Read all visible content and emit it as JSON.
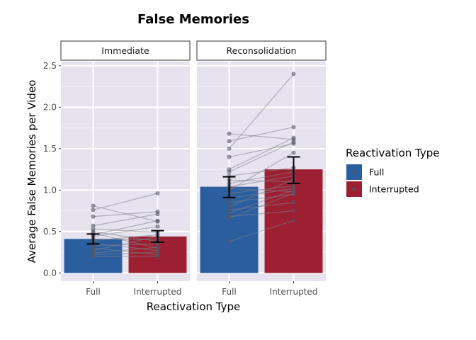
{
  "chart_data": {
    "type": "bar",
    "title": "False Memories",
    "xlabel": "Reactivation Type",
    "ylabel": "Average False Memories per Video",
    "ylim": [
      -0.1,
      2.55
    ],
    "yticks": [
      0.0,
      0.5,
      1.0,
      1.5,
      2.0,
      2.5
    ],
    "ytick_labels": [
      "0.0",
      "0.5",
      "1.0",
      "1.5",
      "2.0",
      "2.5"
    ],
    "categories": [
      "Full",
      "Interrupted"
    ],
    "grid": true,
    "legend": {
      "title": "Reactivation Type",
      "position": "right",
      "entries": [
        {
          "label": "Full",
          "color": "#2a5e9e"
        },
        {
          "label": "Interrupted",
          "color": "#9c2031"
        }
      ]
    },
    "panels": [
      {
        "label": "Immediate",
        "bars": [
          {
            "category": "Full",
            "value": 0.41,
            "err_low": 0.35,
            "err_high": 0.47
          },
          {
            "category": "Interrupted",
            "value": 0.44,
            "err_low": 0.37,
            "err_high": 0.51
          }
        ],
        "pairs": [
          [
            0.81,
            0.62
          ],
          [
            0.76,
            0.96
          ],
          [
            0.68,
            0.74
          ],
          [
            0.57,
            0.71
          ],
          [
            0.53,
            0.49
          ],
          [
            0.5,
            0.38
          ],
          [
            0.48,
            0.3
          ],
          [
            0.44,
            0.56
          ],
          [
            0.41,
            0.4
          ],
          [
            0.39,
            0.46
          ],
          [
            0.36,
            0.27
          ],
          [
            0.33,
            0.35
          ],
          [
            0.3,
            0.22
          ],
          [
            0.27,
            0.44
          ],
          [
            0.24,
            0.31
          ],
          [
            0.22,
            0.25
          ],
          [
            0.2,
            0.2
          ],
          [
            0.46,
            0.63
          ]
        ]
      },
      {
        "label": "Reconsolidation",
        "bars": [
          {
            "category": "Full",
            "value": 1.04,
            "err_low": 0.91,
            "err_high": 1.16
          },
          {
            "category": "Interrupted",
            "value": 1.25,
            "err_low": 1.08,
            "err_high": 1.4
          }
        ],
        "pairs": [
          [
            1.68,
            1.61
          ],
          [
            1.59,
            1.76
          ],
          [
            1.5,
            2.4
          ],
          [
            1.4,
            1.56
          ],
          [
            1.25,
            1.63
          ],
          [
            1.22,
            1.58
          ],
          [
            1.17,
            1.27
          ],
          [
            1.12,
            1.1
          ],
          [
            1.08,
            1.22
          ],
          [
            1.04,
            1.17
          ],
          [
            1.0,
            1.45
          ],
          [
            0.96,
            1.05
          ],
          [
            0.9,
            1.02
          ],
          [
            0.85,
            0.95
          ],
          [
            0.8,
            1.13
          ],
          [
            0.76,
            0.85
          ],
          [
            0.72,
            1.0
          ],
          [
            0.68,
            0.75
          ],
          [
            0.66,
            0.96
          ],
          [
            0.38,
            0.63
          ],
          [
            1.02,
            0.98
          ]
        ]
      }
    ]
  }
}
